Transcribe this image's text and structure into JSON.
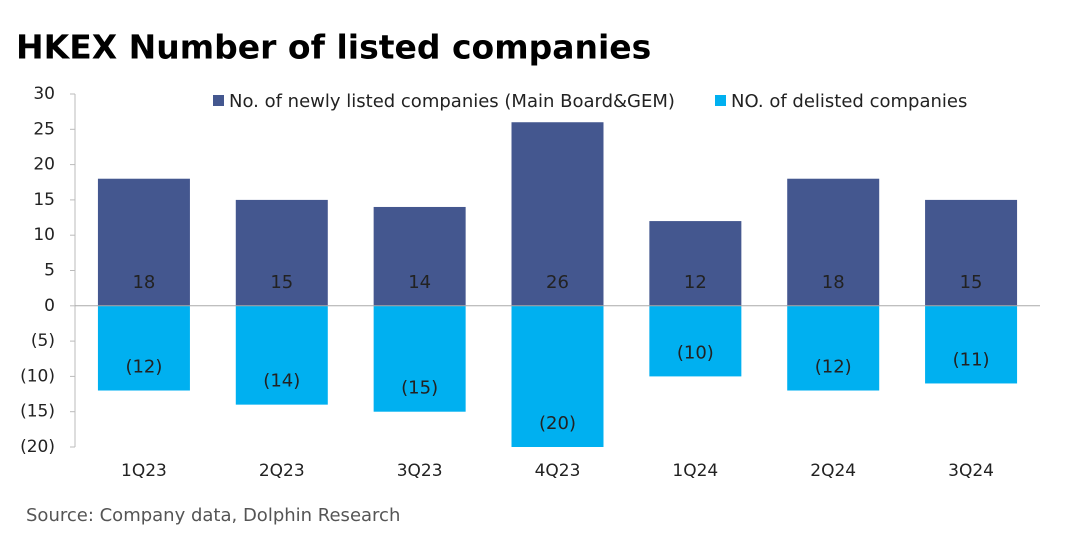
{
  "chart_data": {
    "type": "bar",
    "stacked": true,
    "title": "HKEX Number of listed companies",
    "source": "Source: Company data, Dolphin Research",
    "categories": [
      "1Q23",
      "2Q23",
      "3Q23",
      "4Q23",
      "1Q24",
      "2Q24",
      "3Q24"
    ],
    "series": [
      {
        "name": "No. of newly listed companies (Main Board&GEM)",
        "color": "#44578f",
        "values": [
          18,
          15,
          14,
          26,
          12,
          18,
          15
        ]
      },
      {
        "name": "NO. of delisted companies",
        "color": "#00b0f0",
        "values": [
          -12,
          -14,
          -15,
          -20,
          -10,
          -12,
          -11
        ],
        "value_labels": [
          "(12)",
          "(14)",
          "(15)",
          "(20)",
          "(10)",
          "(12)",
          "(11)"
        ]
      }
    ],
    "ylim": [
      -20,
      30
    ],
    "yticks": [
      {
        "value": -20,
        "label": "(20)"
      },
      {
        "value": -15,
        "label": "(15)"
      },
      {
        "value": -10,
        "label": "(10)"
      },
      {
        "value": -5,
        "label": "(5)"
      },
      0,
      5,
      10,
      15,
      20,
      25,
      30
    ],
    "grid": false,
    "legend": "top"
  }
}
